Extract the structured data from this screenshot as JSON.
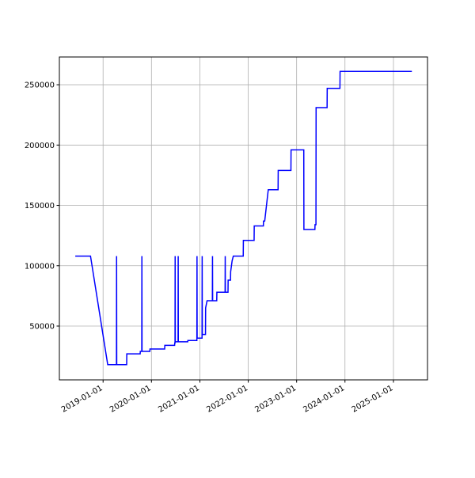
{
  "chart_data": {
    "type": "line",
    "color": "#0000ff",
    "grid": true,
    "x": [
      "2018-06-05",
      "2018-09-28",
      "2019-02-05",
      "2019-04-12",
      "2019-04-13",
      "2019-04-14",
      "2019-06-28",
      "2019-06-29",
      "2019-10-08",
      "2019-10-09",
      "2019-10-20",
      "2019-10-21",
      "2019-10-22",
      "2019-12-20",
      "2019-12-21",
      "2020-04-10",
      "2020-04-11",
      "2020-06-24",
      "2020-06-25",
      "2020-06-27",
      "2020-06-28",
      "2020-06-29",
      "2020-07-20",
      "2020-07-21",
      "2020-07-22",
      "2020-10-01",
      "2020-10-02",
      "2020-12-09",
      "2020-12-10",
      "2020-12-11",
      "2021-01-17",
      "2021-01-18",
      "2021-01-19",
      "2021-02-12",
      "2021-02-13",
      "2021-02-24",
      "2021-04-05",
      "2021-04-06",
      "2021-04-07",
      "2021-05-08",
      "2021-05-09",
      "2021-07-10",
      "2021-07-11",
      "2021-07-12",
      "2021-08-01",
      "2021-08-02",
      "2021-08-20",
      "2021-08-21",
      "2021-09-01",
      "2021-09-10",
      "2021-11-24",
      "2021-11-25",
      "2022-02-14",
      "2022-02-15",
      "2022-04-25",
      "2022-04-26",
      "2022-05-05",
      "2022-06-01",
      "2022-08-14",
      "2022-08-15",
      "2022-11-19",
      "2022-11-20",
      "2023-02-24",
      "2023-02-25",
      "2023-05-19",
      "2023-05-20",
      "2023-05-27",
      "2023-05-28",
      "2023-08-19",
      "2023-08-20",
      "2023-11-24",
      "2023-11-25",
      "2025-05-20"
    ],
    "values": [
      108000,
      108000,
      18000,
      18000,
      108000,
      18000,
      18000,
      27000,
      27000,
      29000,
      29000,
      108000,
      29000,
      29000,
      31000,
      31000,
      34000,
      34000,
      36000,
      36000,
      108000,
      37000,
      37000,
      108000,
      37000,
      37000,
      38000,
      38000,
      108000,
      40000,
      40000,
      108000,
      43000,
      43000,
      65000,
      71000,
      71000,
      108000,
      71000,
      71000,
      78000,
      78000,
      108000,
      78000,
      78000,
      88000,
      88000,
      95000,
      104000,
      108000,
      108000,
      121000,
      121000,
      133000,
      133000,
      137000,
      137000,
      163000,
      163000,
      179000,
      179000,
      196000,
      196000,
      130000,
      130000,
      134000,
      134000,
      231000,
      231000,
      247000,
      247000,
      261000,
      261000
    ],
    "xlim": [
      "2018-02-05",
      "2025-09-15"
    ],
    "xticks": [
      "2019-01-01",
      "2020-01-01",
      "2021-01-01",
      "2022-01-01",
      "2023-01-01",
      "2024-01-01",
      "2025-01-01"
    ],
    "ylim": [
      5400,
      273000
    ],
    "yticks": [
      50000,
      100000,
      150000,
      200000,
      250000
    ]
  }
}
